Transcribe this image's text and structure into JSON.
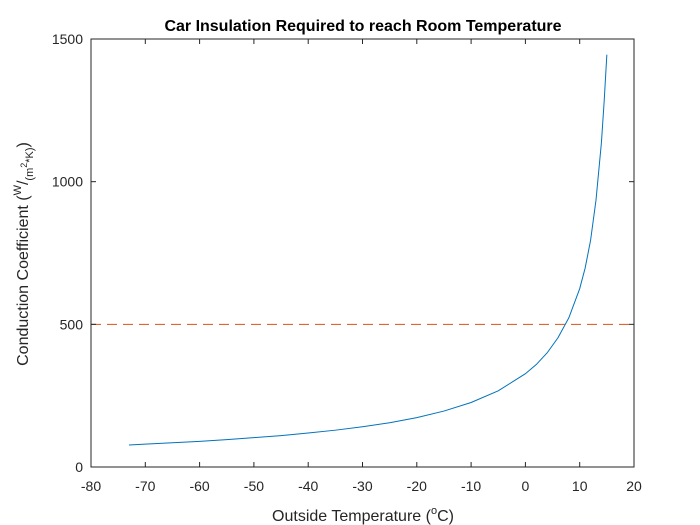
{
  "chart_data": {
    "type": "line",
    "title": "Car Insulation Required to reach Room Temperature",
    "xlabel": {
      "main": "Outside Temperature (",
      "sup": "o",
      "unit": "C)"
    },
    "ylabel": {
      "main": "Conduction Coefficient (",
      "sup": "W",
      "slash": "/",
      "sub": "(m",
      "sub_sup": "2",
      "sub_end": "*K)",
      "close": ")"
    },
    "xlim": [
      -80,
      20
    ],
    "ylim": [
      0,
      1500
    ],
    "xticks": [
      -80,
      -70,
      -60,
      -50,
      -40,
      -30,
      -20,
      -10,
      0,
      10,
      20
    ],
    "yticks": [
      0,
      500,
      1000,
      1500
    ],
    "grid": false,
    "series": [
      {
        "style": "solid",
        "color": "#0072BD",
        "x": [
          -73,
          -70,
          -65,
          -60,
          -55,
          -50,
          -45,
          -40,
          -35,
          -30,
          -25,
          -20,
          -15,
          -10,
          -5,
          0,
          2,
          4,
          6,
          8,
          10,
          11,
          12,
          13,
          14,
          14.5,
          15
        ],
        "y": [
          77,
          80,
          85,
          90,
          96,
          103,
          110,
          119,
          129,
          141,
          155,
          173,
          196,
          226,
          267,
          327,
          359,
          400,
          453,
          523,
          625,
          697,
          794,
          935,
          1137,
          1280,
          1445
        ]
      },
      {
        "style": "dashed",
        "color": "#D95319",
        "x": [
          -80,
          20
        ],
        "y": [
          500,
          500
        ]
      }
    ]
  }
}
